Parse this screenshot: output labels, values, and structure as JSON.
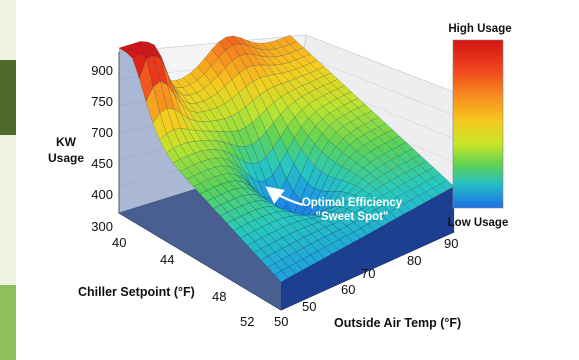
{
  "chart_data": {
    "type": "surface3d",
    "zlabel": "KW Usage",
    "xlabel": "Outside Air Temp (°F)",
    "ylabel": "Chiller Setpoint (°F)",
    "z_ticks": [
      "900",
      "750",
      "700",
      "450",
      "400",
      "300"
    ],
    "x_ticks": [
      "50",
      "50",
      "60",
      "70",
      "80",
      "90"
    ],
    "y_ticks": [
      "40",
      "44",
      "48",
      "52"
    ],
    "x_range": [
      50,
      90
    ],
    "y_range": [
      40,
      52
    ],
    "z_range": [
      300,
      900
    ],
    "colorbar": {
      "high_label": "High Usage",
      "low_label": "Low Usage",
      "colors": [
        "#d41414",
        "#f0461e",
        "#f78c1e",
        "#f5c81e",
        "#c8e628",
        "#5fd250",
        "#23bec8",
        "#1e6ee6"
      ]
    },
    "annotation": {
      "line1": "Optimal Efficiency",
      "line2": "\"Sweet Spot\""
    },
    "peak": {
      "outside_air_temp": 50,
      "chiller_setpoint": 40,
      "kw": 900
    },
    "minimum": {
      "outside_air_temp": 70,
      "chiller_setpoint": 46,
      "kw": 400
    }
  }
}
